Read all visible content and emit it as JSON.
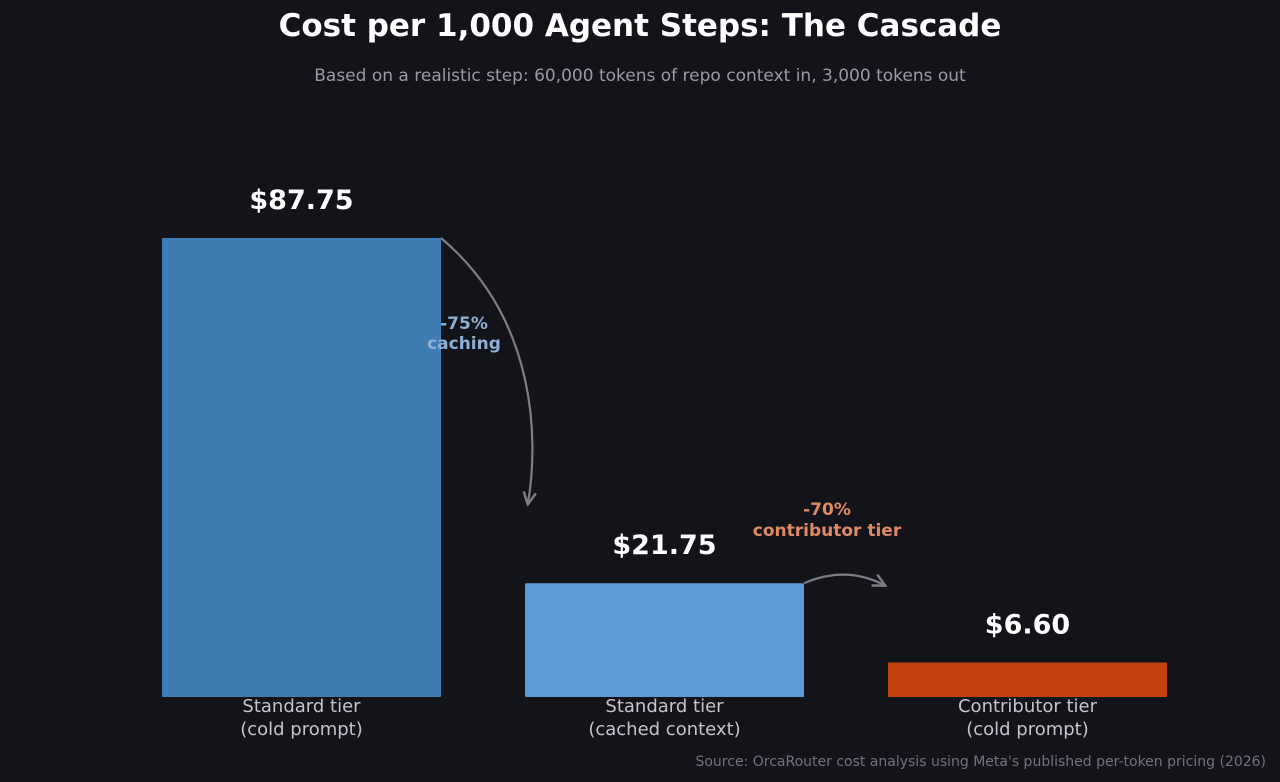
{
  "chart_data": {
    "type": "bar",
    "title": "Cost per 1,000 Agent Steps: The Cascade",
    "subtitle": "Based on a realistic step: 60,000 tokens of repo context in, 3,000 tokens out",
    "categories": [
      [
        "Standard tier",
        "(cold prompt)"
      ],
      [
        "Standard tier",
        "(cached context)"
      ],
      [
        "Contributor tier",
        "(cold prompt)"
      ]
    ],
    "values": [
      87.75,
      21.75,
      6.6
    ],
    "value_labels": [
      "$87.75",
      "$21.75",
      "$6.60"
    ],
    "colors": [
      "#3e7cb2",
      "#5b9ad6",
      "#c4420f"
    ],
    "ylim": [
      0,
      87.75
    ],
    "xlabel": "",
    "ylabel": "",
    "grid": false,
    "annotations": [
      {
        "lines": [
          "-75%",
          "caching"
        ],
        "color": "#8fb0d6",
        "from": 0,
        "to": 1
      },
      {
        "lines": [
          "-70%",
          "contributor tier"
        ],
        "color": "#e08a64",
        "from": 1,
        "to": 2
      }
    ],
    "source": "Source: OrcaRouter cost analysis using Meta's published per-token pricing (2026)"
  }
}
